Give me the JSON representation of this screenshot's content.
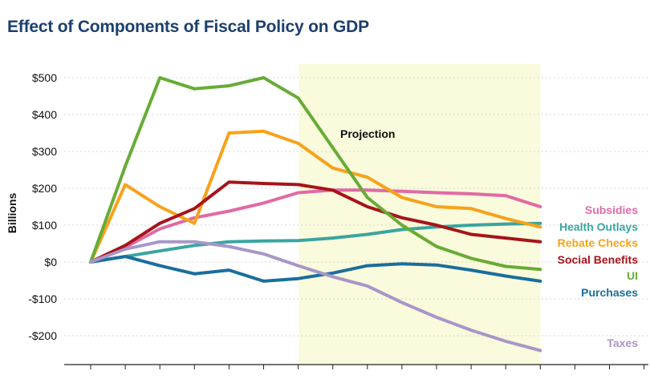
{
  "chart_data": {
    "type": "line",
    "title": "Effect of Components of Fiscal Policy on GDP",
    "ylabel": "Billions",
    "ylim": [
      -250,
      550
    ],
    "yticks": [
      -200,
      -100,
      0,
      100,
      200,
      300,
      400,
      500
    ],
    "ytick_labels": [
      "-$200",
      "-$100",
      "$0",
      "$100",
      "$200",
      "$300",
      "$400",
      "$500"
    ],
    "grid": "horizontal dotted",
    "legend": "right, at line ends",
    "x_count": 14,
    "shaded_region": {
      "from_index": 6,
      "to_index": 13,
      "label": "Projection",
      "color": "#fafadc"
    },
    "series": [
      {
        "name": "Subsidies",
        "color": "#e06aa4",
        "values": [
          0,
          40,
          90,
          120,
          138,
          160,
          188,
          195,
          195,
          192,
          188,
          185,
          180,
          150
        ]
      },
      {
        "name": "Health Outlays",
        "color": "#3aa5a0",
        "values": [
          0,
          15,
          30,
          45,
          55,
          57,
          58,
          65,
          75,
          88,
          95,
          100,
          103,
          105
        ]
      },
      {
        "name": "Rebate Checks",
        "color": "#f7a21b",
        "values": [
          0,
          210,
          150,
          105,
          350,
          355,
          322,
          255,
          230,
          175,
          150,
          145,
          118,
          95
        ]
      },
      {
        "name": "Social Benefits",
        "color": "#a6141b",
        "values": [
          0,
          45,
          105,
          145,
          217,
          213,
          210,
          195,
          150,
          120,
          100,
          75,
          65,
          55
        ]
      },
      {
        "name": "UI",
        "color": "#67ac35",
        "values": [
          0,
          260,
          500,
          470,
          478,
          500,
          445,
          310,
          175,
          100,
          42,
          10,
          -12,
          -20
        ]
      },
      {
        "name": "Purchases",
        "color": "#1a6e9c",
        "values": [
          0,
          15,
          -10,
          -32,
          -22,
          -52,
          -45,
          -30,
          -10,
          -5,
          -8,
          -22,
          -38,
          -52
        ]
      },
      {
        "name": "Taxes",
        "color": "#a896c9",
        "values": [
          0,
          35,
          55,
          55,
          42,
          22,
          -10,
          -40,
          -65,
          -110,
          -150,
          -185,
          -215,
          -240
        ]
      }
    ]
  }
}
